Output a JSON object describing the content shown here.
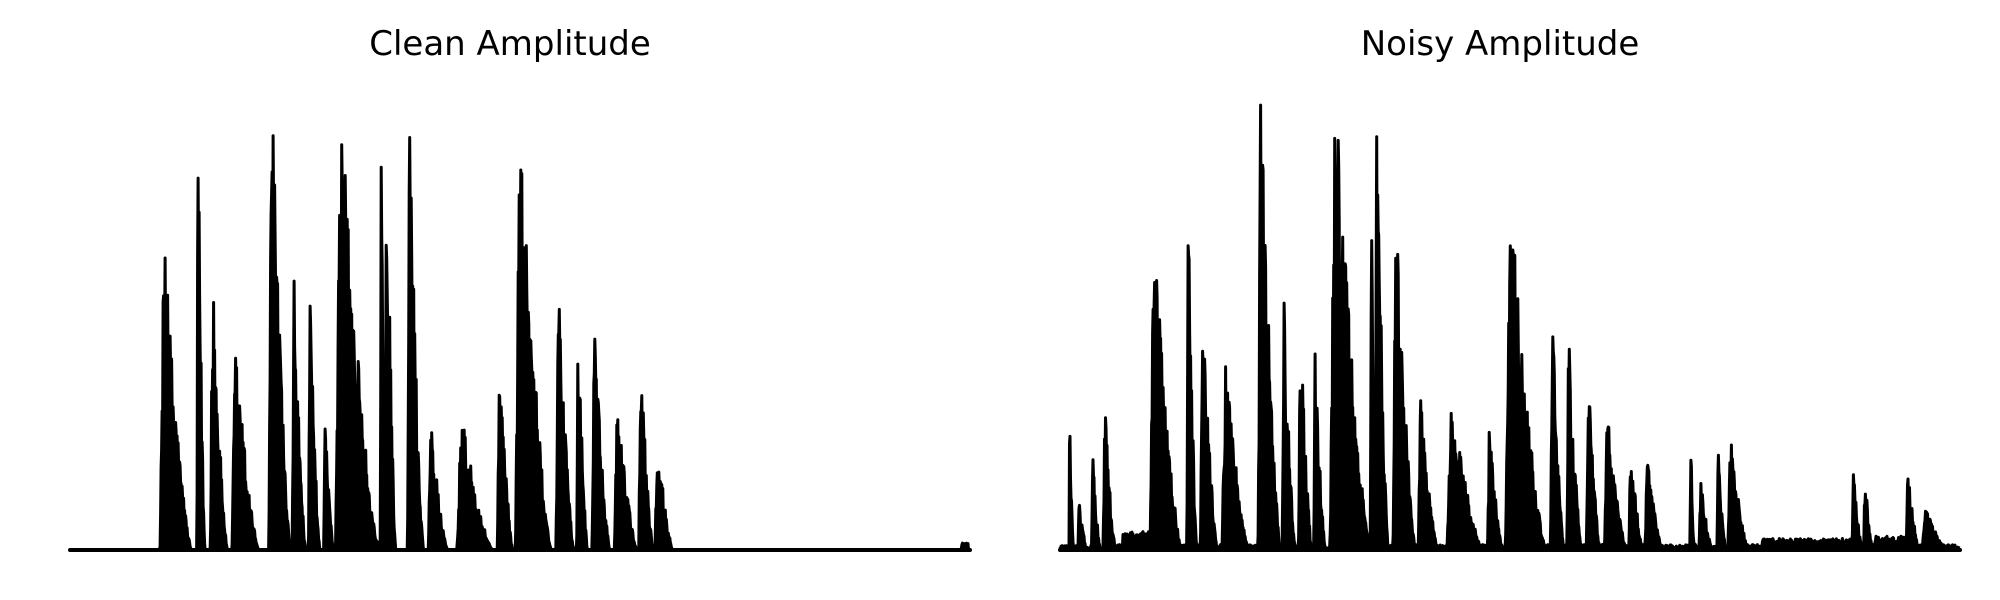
{
  "chart_data": [
    {
      "type": "line",
      "title": "Clean Amplitude",
      "xlabel": "",
      "ylabel": "",
      "axes_visible": false,
      "grid": false,
      "line_color": "#000000",
      "xlim": [
        0,
        1
      ],
      "ylim": [
        0,
        1
      ],
      "bursts": [
        [
          0.1,
          0.135,
          0.68
        ],
        [
          0.141,
          0.15,
          0.96
        ],
        [
          0.156,
          0.175,
          0.6
        ],
        [
          0.18,
          0.21,
          0.45
        ],
        [
          0.221,
          0.245,
          1.02
        ],
        [
          0.247,
          0.262,
          0.6
        ],
        [
          0.265,
          0.278,
          0.55
        ],
        [
          0.282,
          0.293,
          0.3
        ],
        [
          0.295,
          0.343,
          0.97
        ],
        [
          0.345,
          0.35,
          1.0
        ],
        [
          0.35,
          0.362,
          0.98
        ],
        [
          0.375,
          0.393,
          0.93
        ],
        [
          0.398,
          0.42,
          0.28
        ],
        [
          0.43,
          0.47,
          0.3
        ],
        [
          0.475,
          0.492,
          0.45
        ],
        [
          0.495,
          0.535,
          0.95
        ],
        [
          0.54,
          0.56,
          0.58
        ],
        [
          0.563,
          0.575,
          0.51
        ],
        [
          0.58,
          0.6,
          0.49
        ],
        [
          0.605,
          0.63,
          0.34
        ],
        [
          0.632,
          0.648,
          0.44
        ],
        [
          0.65,
          0.67,
          0.25
        ]
      ],
      "floor_bumps": [
        [
          0.315,
          0.35,
          0.02
        ],
        [
          0.99,
          0.998,
          0.015
        ]
      ],
      "noise_floor": 0.0
    },
    {
      "type": "line",
      "title": "Noisy Amplitude",
      "xlabel": "",
      "ylabel": "",
      "axes_visible": false,
      "grid": false,
      "line_color": "#000000",
      "xlim": [
        0,
        1
      ],
      "ylim": [
        0,
        1
      ],
      "bursts": [
        [
          0.01,
          0.015,
          0.32
        ],
        [
          0.02,
          0.03,
          0.12
        ],
        [
          0.035,
          0.045,
          0.22
        ],
        [
          0.048,
          0.062,
          0.32
        ],
        [
          0.1,
          0.135,
          0.7
        ],
        [
          0.141,
          0.152,
          0.8
        ],
        [
          0.156,
          0.175,
          0.52
        ],
        [
          0.18,
          0.21,
          0.42
        ],
        [
          0.22,
          0.245,
          1.0
        ],
        [
          0.247,
          0.262,
          0.55
        ],
        [
          0.265,
          0.28,
          0.5
        ],
        [
          0.282,
          0.295,
          0.45
        ],
        [
          0.3,
          0.345,
          1.02
        ],
        [
          0.345,
          0.35,
          0.93
        ],
        [
          0.35,
          0.365,
          0.96
        ],
        [
          0.37,
          0.395,
          0.79
        ],
        [
          0.398,
          0.42,
          0.33
        ],
        [
          0.43,
          0.47,
          0.33
        ],
        [
          0.475,
          0.492,
          0.27
        ],
        [
          0.495,
          0.54,
          0.77
        ],
        [
          0.545,
          0.56,
          0.52
        ],
        [
          0.563,
          0.58,
          0.48
        ],
        [
          0.585,
          0.6,
          0.4
        ],
        [
          0.605,
          0.63,
          0.3
        ],
        [
          0.632,
          0.648,
          0.23
        ],
        [
          0.65,
          0.67,
          0.2
        ],
        [
          0.7,
          0.705,
          0.25
        ],
        [
          0.71,
          0.725,
          0.15
        ],
        [
          0.73,
          0.74,
          0.22
        ],
        [
          0.742,
          0.765,
          0.25
        ],
        [
          0.88,
          0.892,
          0.17
        ],
        [
          0.893,
          0.903,
          0.18
        ],
        [
          0.94,
          0.955,
          0.18
        ],
        [
          0.958,
          0.985,
          0.1
        ]
      ],
      "floor_bumps": [
        [
          0.07,
          0.1,
          0.04
        ],
        [
          0.3,
          0.33,
          0.05
        ],
        [
          0.78,
          0.88,
          0.025
        ],
        [
          0.905,
          0.94,
          0.03
        ]
      ],
      "noise_floor": 0.012
    }
  ]
}
